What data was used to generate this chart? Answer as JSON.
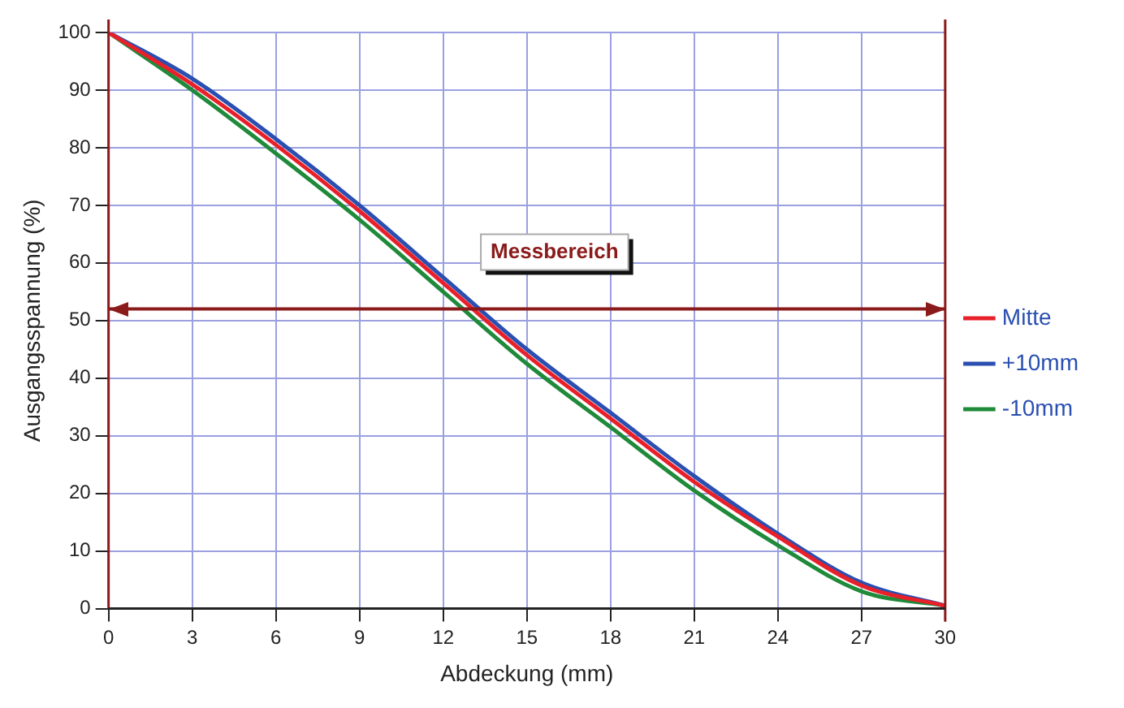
{
  "chart_data": {
    "type": "line",
    "xlabel": "Abdeckung (mm)",
    "ylabel": "Ausgangsspannung (%)",
    "x": [
      0,
      3,
      6,
      9,
      12,
      15,
      18,
      21,
      24,
      27,
      30
    ],
    "series": [
      {
        "name": "Mitte",
        "color": "#e8202a",
        "values": [
          100,
          91,
          80.5,
          69,
          56.5,
          44,
          33,
          22,
          12.5,
          4,
          0.5
        ]
      },
      {
        "name": "+10mm",
        "color": "#2a4fb0",
        "values": [
          100,
          92,
          81.5,
          70,
          57.5,
          45,
          34,
          23,
          13,
          4.5,
          0.5
        ]
      },
      {
        "name": "-10mm",
        "color": "#1e8a3a",
        "values": [
          100,
          90,
          79,
          67.5,
          55,
          42.5,
          31.5,
          20.5,
          11,
          3,
          0.5
        ]
      }
    ],
    "xlim": [
      0,
      30
    ],
    "xticks": [
      0,
      3,
      6,
      9,
      12,
      15,
      18,
      21,
      24,
      27,
      30
    ],
    "ylim": [
      0,
      100
    ],
    "yticks": [
      0,
      10,
      20,
      30,
      40,
      50,
      60,
      70,
      80,
      90,
      100
    ],
    "ref_lines": [
      {
        "axis": "y",
        "value": 52,
        "label": "Messbereich",
        "color": "#8b1a1a"
      }
    ],
    "grid": true,
    "legend": "right",
    "marker": "none",
    "line_style": "solid"
  }
}
